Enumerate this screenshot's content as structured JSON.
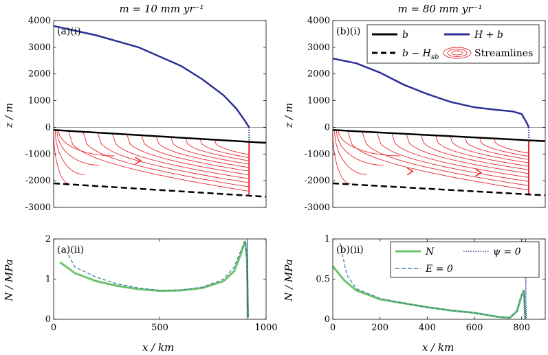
{
  "figure_titles": {
    "left": "m = 10 mm yr⁻¹",
    "right": "m = 80 mm yr⁻¹"
  },
  "colors": {
    "bed": "#000000",
    "surface": "#2b2f96",
    "streamlines": "#e8252a",
    "N": "#6cc36c",
    "E0": "#3a7fa0",
    "psi0": "#2b2f96"
  },
  "chart_data": [
    {
      "id": "a-i",
      "panel_label": "(a)(i)",
      "type": "line",
      "xlim": [
        0,
        1000
      ],
      "ylim": [
        -3000,
        4000
      ],
      "yticks": [
        -3000,
        -2000,
        -1000,
        0,
        1000,
        2000,
        3000,
        4000
      ],
      "ytick_labels": [
        "-3000",
        "-2000",
        "-1000",
        "0",
        "1000",
        "2000",
        "3000",
        "4000"
      ],
      "ylabel": "z / m",
      "series": [
        {
          "name": "H + b",
          "x": [
            0,
            200,
            400,
            600,
            700,
            800,
            860,
            900,
            920
          ],
          "y": [
            3800,
            3450,
            3000,
            2300,
            1800,
            1200,
            700,
            250,
            0
          ]
        },
        {
          "name": "b",
          "x": [
            0,
            1000
          ],
          "y": [
            -100,
            -580
          ]
        },
        {
          "name": "b - H_sb",
          "x": [
            0,
            1000
          ],
          "y": [
            -2100,
            -2600
          ]
        }
      ],
      "streamlines": {
        "n": 11,
        "x_start": 0,
        "x_end": 920,
        "depth_top": -120,
        "depth_bottom": -2520
      },
      "arrows": [
        {
          "x": 400,
          "y": -1250
        }
      ]
    },
    {
      "id": "b-i",
      "panel_label": "(b)(i)",
      "type": "line",
      "xlim": [
        0,
        900
      ],
      "ylim": [
        -3000,
        4000
      ],
      "yticks": [
        -3000,
        -2000,
        -1000,
        0,
        1000,
        2000,
        3000,
        4000
      ],
      "ytick_labels": [
        "-3000",
        "-2000",
        "-1000",
        "0",
        "1000",
        "2000",
        "3000",
        "4000"
      ],
      "ylabel": "z / m",
      "series": [
        {
          "name": "H + b",
          "x": [
            0,
            100,
            200,
            300,
            400,
            500,
            600,
            700,
            760,
            800,
            820,
            830
          ],
          "y": [
            2580,
            2400,
            2050,
            1600,
            1250,
            950,
            750,
            650,
            600,
            500,
            200,
            0
          ]
        },
        {
          "name": "b",
          "x": [
            0,
            900
          ],
          "y": [
            -100,
            -520
          ]
        },
        {
          "name": "b - H_sb",
          "x": [
            0,
            900
          ],
          "y": [
            -2100,
            -2550
          ]
        }
      ],
      "streamlines": {
        "n": 11,
        "x_start": 0,
        "x_end": 830,
        "depth_top": -120,
        "depth_bottom": -2500
      },
      "arrows": [
        {
          "x": 330,
          "y": -1650
        },
        {
          "x": 620,
          "y": -1700
        }
      ]
    },
    {
      "id": "a-ii",
      "panel_label": "(a)(ii)",
      "type": "line",
      "xlim": [
        0,
        1000
      ],
      "ylim": [
        0,
        2
      ],
      "xticks": [
        0,
        500,
        1000
      ],
      "xtick_labels": [
        "0",
        "500",
        "1000"
      ],
      "yticks": [
        0,
        1,
        2
      ],
      "ytick_labels": [
        "0",
        "1",
        "2"
      ],
      "xlabel": "x / km",
      "ylabel": "N / MPa",
      "series": [
        {
          "name": "N",
          "x": [
            30,
            100,
            200,
            300,
            400,
            500,
            600,
            700,
            800,
            850,
            880,
            900,
            910,
            915
          ],
          "y": [
            1.42,
            1.15,
            0.95,
            0.83,
            0.75,
            0.71,
            0.72,
            0.78,
            0.95,
            1.2,
            1.6,
            1.95,
            1.5,
            0.05
          ]
        },
        {
          "name": "E = 0",
          "x": [
            70,
            100,
            200,
            300,
            400,
            500,
            600,
            700,
            800,
            850,
            880,
            905,
            910,
            915
          ],
          "y": [
            1.6,
            1.3,
            1.05,
            0.88,
            0.78,
            0.72,
            0.73,
            0.8,
            1.0,
            1.3,
            1.7,
            1.95,
            1.4,
            0.05
          ]
        },
        {
          "name": "psi = 0",
          "x": [
            910,
            912,
            915
          ],
          "y": [
            0.0,
            2.0,
            0.0
          ]
        }
      ]
    },
    {
      "id": "b-ii",
      "panel_label": "(b)(ii)",
      "type": "line",
      "xlim": [
        0,
        900
      ],
      "ylim": [
        0,
        1
      ],
      "xticks": [
        0,
        200,
        400,
        600,
        800
      ],
      "xtick_labels": [
        "0",
        "200",
        "400",
        "600",
        "800"
      ],
      "yticks": [
        0,
        0.5,
        1
      ],
      "ytick_labels": [
        "0",
        "0.5",
        "1"
      ],
      "xlabel": "x / km",
      "ylabel": "N / MPa",
      "series": [
        {
          "name": "N",
          "x": [
            0,
            50,
            100,
            200,
            300,
            400,
            500,
            600,
            700,
            750,
            780,
            800,
            810,
            815
          ],
          "y": [
            0.66,
            0.48,
            0.36,
            0.25,
            0.2,
            0.15,
            0.11,
            0.08,
            0.03,
            0.02,
            0.1,
            0.3,
            0.36,
            0.01
          ]
        },
        {
          "name": "E = 0",
          "x": [
            30,
            60,
            100,
            200,
            300,
            400,
            500,
            600,
            700,
            750,
            780,
            800,
            810,
            815
          ],
          "y": [
            0.95,
            0.55,
            0.38,
            0.26,
            0.2,
            0.15,
            0.11,
            0.08,
            0.03,
            0.02,
            0.1,
            0.3,
            0.36,
            0.01
          ]
        },
        {
          "name": "psi = 0",
          "x": [
            815,
            817,
            820
          ],
          "y": [
            0.0,
            1.0,
            0.0
          ]
        }
      ]
    }
  ],
  "legends": {
    "top": {
      "b": "b",
      "H_plus_b": "H + b",
      "b_minus_Hsb": "b − H",
      "b_minus_Hsb_sub": "sb",
      "streamlines": "Streamlines"
    },
    "bottom": {
      "N": "N",
      "psi": "ψ = 0",
      "E": "E = 0"
    }
  }
}
